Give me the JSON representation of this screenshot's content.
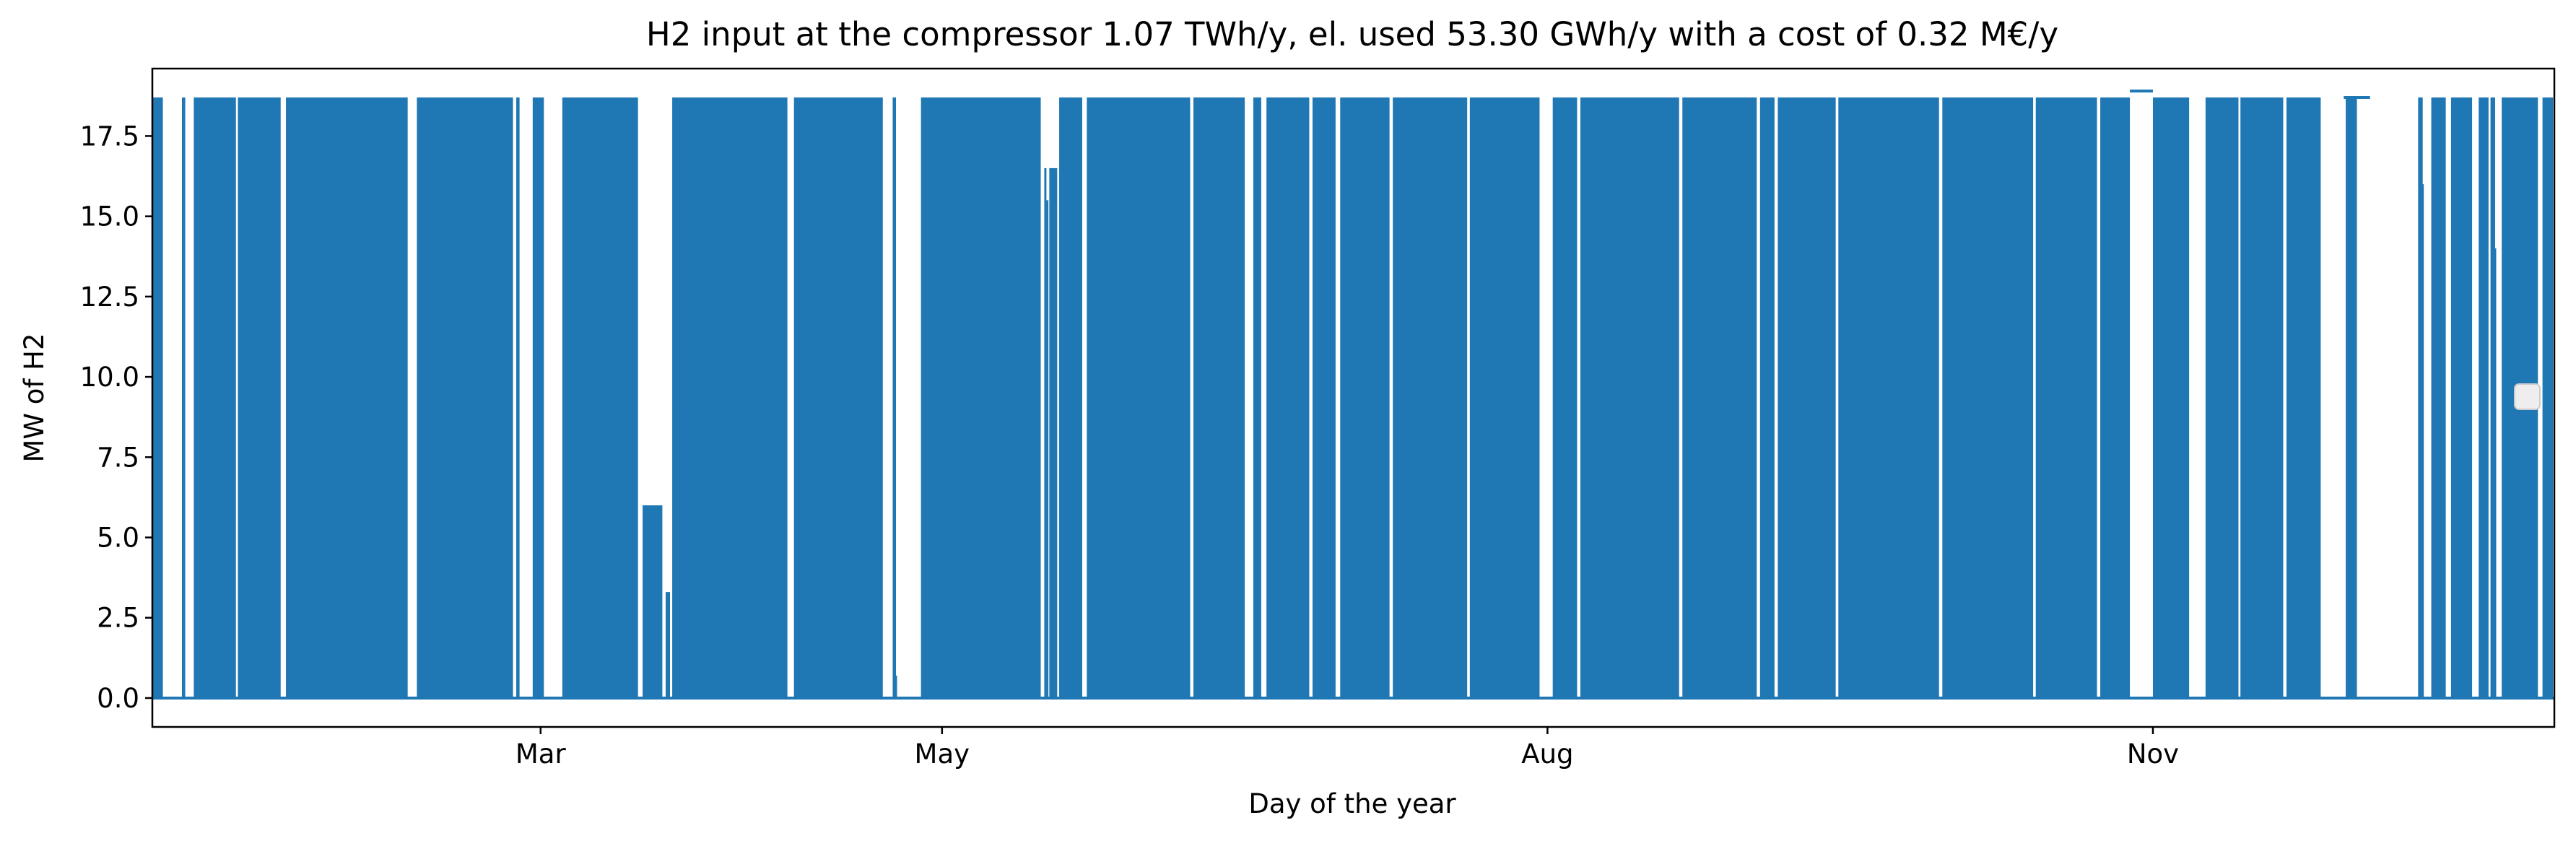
{
  "chart_data": {
    "type": "area",
    "title": "H2 input at the compressor 1.07 TWh/y, el. used 53.30 GWh/y with a cost of 0.32 M€/y",
    "xlabel": "Day of the year",
    "ylabel": "MW of H2",
    "x_unit": "day of year",
    "xlim": [
      1,
      366
    ],
    "ylim": [
      -0.9,
      19.6
    ],
    "x_ticks": [
      {
        "label": "Mar",
        "day": 60
      },
      {
        "label": "May",
        "day": 121
      },
      {
        "label": "Aug",
        "day": 213
      },
      {
        "label": "Nov",
        "day": 305
      }
    ],
    "y_ticks": [
      0.0,
      2.5,
      5.0,
      7.5,
      10.0,
      12.5,
      15.0,
      17.5
    ],
    "y_tick_labels": [
      "0.0",
      "2.5",
      "5.0",
      "7.5",
      "10.0",
      "12.5",
      "15.0",
      "17.5"
    ],
    "grid": false,
    "legend": "empty legend box, center-right",
    "series": [
      {
        "color": "#1f77b4",
        "description_values": "hourly H2 flow alternating between 0 and about 18.7 MW; intervals listed as [start_day, end_day, level_MW] where the flow is on (dense on/off switching)",
        "on_blocks": [
          [
            1.1,
            2.6,
            18.7
          ],
          [
            5.5,
            6.0,
            18.7
          ],
          [
            7.3,
            13.7,
            18.7
          ],
          [
            14.0,
            20.5,
            18.7
          ],
          [
            21.3,
            39.8,
            18.7
          ],
          [
            41.2,
            55.8,
            18.7
          ],
          [
            56.3,
            56.8,
            18.7
          ],
          [
            58.8,
            60.5,
            18.7
          ],
          [
            63.3,
            74.8,
            18.7
          ],
          [
            75.5,
            78.5,
            6.0
          ],
          [
            79.0,
            79.5,
            3.3
          ],
          [
            80.0,
            97.5,
            18.7
          ],
          [
            98.5,
            112.0,
            18.7
          ],
          [
            113.5,
            114.0,
            18.7
          ],
          [
            117.8,
            136.0,
            18.7
          ],
          [
            137.3,
            138.5,
            16.5
          ],
          [
            138.8,
            142.3,
            18.7
          ],
          [
            143.0,
            158.7,
            18.7
          ],
          [
            159.2,
            167.0,
            18.7
          ],
          [
            168.3,
            169.5,
            18.7
          ],
          [
            170.3,
            176.8,
            18.7
          ],
          [
            177.3,
            180.8,
            18.7
          ],
          [
            181.5,
            189.0,
            18.7
          ],
          [
            189.5,
            200.8,
            18.7
          ],
          [
            201.2,
            211.8,
            18.7
          ],
          [
            213.8,
            217.5,
            18.7
          ],
          [
            218.0,
            233.0,
            18.7
          ],
          [
            233.5,
            244.8,
            18.7
          ],
          [
            245.3,
            247.5,
            18.7
          ],
          [
            248.0,
            256.8,
            18.7
          ],
          [
            257.2,
            272.5,
            18.7
          ],
          [
            273.0,
            286.8,
            18.7
          ],
          [
            287.2,
            296.5,
            18.7
          ],
          [
            297.0,
            301.5,
            18.7
          ],
          [
            305.0,
            310.5,
            18.7
          ],
          [
            313.0,
            318.0,
            18.7
          ],
          [
            318.3,
            324.8,
            18.7
          ],
          [
            325.3,
            330.5,
            18.7
          ],
          [
            334.3,
            336.0,
            18.7
          ],
          [
            345.3,
            346.0,
            18.7
          ],
          [
            347.3,
            349.5,
            18.7
          ],
          [
            350.3,
            353.5,
            18.7
          ],
          [
            354.5,
            356.0,
            18.7
          ],
          [
            356.3,
            357.0,
            18.7
          ],
          [
            358.0,
            363.5,
            18.7
          ],
          [
            364.2,
            365.8,
            18.7
          ]
        ],
        "flat_segments": [
          [
            301.5,
            305.0,
            18.9
          ],
          [
            334.0,
            338.0,
            18.7
          ]
        ],
        "spikes": [
          [
            8.7,
            14.5
          ],
          [
            13.5,
            5.5
          ],
          [
            26.0,
            17.6
          ],
          [
            34.5,
            12.3
          ],
          [
            76.0,
            6.0
          ],
          [
            79.5,
            3.3
          ],
          [
            81.5,
            9.0
          ],
          [
            95.7,
            0.7
          ],
          [
            108.8,
            11.8
          ],
          [
            109.8,
            8.0
          ],
          [
            114.0,
            0.7
          ],
          [
            136.7,
            16.5
          ],
          [
            137.0,
            15.5
          ],
          [
            135.3,
            6.9
          ],
          [
            182.8,
            17.0
          ],
          [
            184.0,
            16.5
          ],
          [
            200.5,
            12.5
          ],
          [
            206.0,
            11.5
          ],
          [
            214.0,
            0.5
          ],
          [
            219.0,
            4.6
          ],
          [
            225.0,
            2.8
          ],
          [
            226.0,
            3.5
          ],
          [
            231.0,
            6.5
          ],
          [
            261.0,
            15.2
          ],
          [
            262.0,
            15.5
          ],
          [
            270.5,
            17.5
          ],
          [
            276.2,
            15.0
          ],
          [
            279.0,
            4.0
          ],
          [
            299.5,
            15.6
          ],
          [
            329.0,
            5.2
          ],
          [
            346.0,
            16.0
          ],
          [
            357.0,
            14.0
          ],
          [
            363.0,
            2.8
          ],
          [
            365.5,
            14.5
          ]
        ]
      }
    ]
  }
}
